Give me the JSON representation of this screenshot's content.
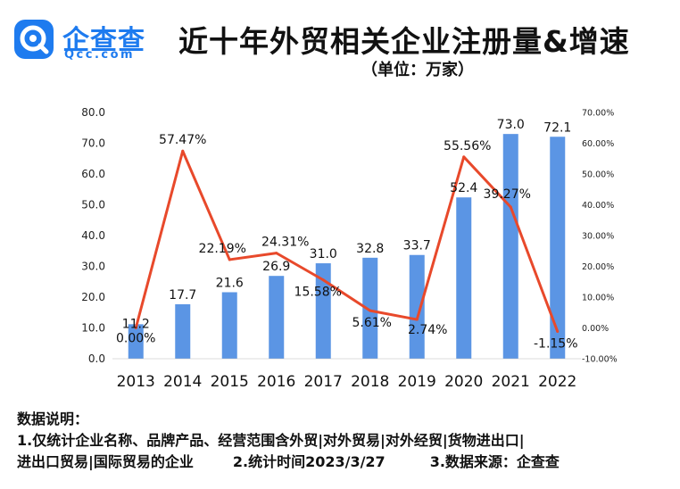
{
  "logo": {
    "text": "企查查",
    "domain": "Qcc.com"
  },
  "title": "近十年外贸相关企业注册量&增速",
  "subtitle": "（单位：万家）",
  "notes": {
    "heading": "数据说明：",
    "line1": "1.仅统计企业名称、品牌产品、经营范围含外贸|对外贸易|对外经贸|货物进出口|",
    "line2a": "进出口贸易|国际贸易的企业",
    "line2b": "2.统计时间2023/3/27",
    "line2c": "3.数据来源：企查查"
  },
  "colors": {
    "bar": "#5b95e4",
    "line": "#e8492b",
    "brand": "#1e7bef"
  },
  "chart_data": {
    "type": "bar",
    "categories": [
      "2013",
      "2014",
      "2015",
      "2016",
      "2017",
      "2018",
      "2019",
      "2020",
      "2021",
      "2022"
    ],
    "series": [
      {
        "values": [
          11.2,
          17.7,
          21.6,
          26.9,
          31.0,
          32.8,
          33.7,
          52.4,
          73.0,
          72.1
        ],
        "labels": [
          "11.2",
          "17.7",
          "21.6",
          "26.9",
          "31.0",
          "32.8",
          "33.7",
          "52.4",
          "73.0",
          "72.1"
        ]
      },
      {
        "type": "line",
        "values": [
          0.0,
          57.47,
          22.19,
          24.31,
          15.58,
          5.61,
          2.74,
          55.56,
          39.27,
          -1.15
        ],
        "labels": [
          "0.00%",
          "57.47%",
          "22.19%",
          "24.31%",
          "15.58%",
          "5.61%",
          "2.74%",
          "55.56%",
          "39.27%",
          "-1.15%"
        ]
      }
    ],
    "ylim": [
      0,
      80
    ],
    "yticks": [
      "80.0",
      "70.0",
      "60.0",
      "50.0",
      "40.0",
      "30.0",
      "20.0",
      "10.0",
      "0.0"
    ],
    "y2lim": [
      -10,
      70
    ],
    "y2ticks": [
      "70.00%",
      "60.00%",
      "50.00%",
      "40.00%",
      "30.00%",
      "20.00%",
      "10.00%",
      "0.00%",
      "-10.00%"
    ],
    "grid": false
  }
}
